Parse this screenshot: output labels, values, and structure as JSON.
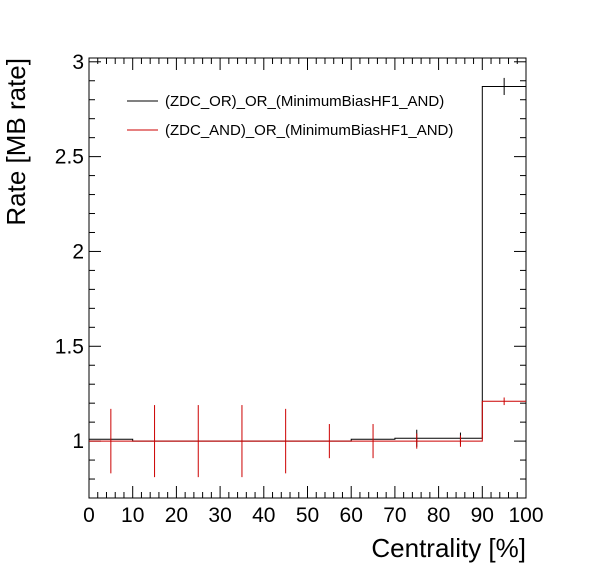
{
  "chart_data": {
    "type": "line",
    "title": "",
    "xlabel": "Centrality [%]",
    "ylabel": "Rate [MB rate]",
    "xlim": [
      0,
      100
    ],
    "ylim": [
      0.7,
      3.02
    ],
    "x_ticks": [
      "0",
      "10",
      "20",
      "30",
      "40",
      "50",
      "60",
      "70",
      "80",
      "90",
      "100"
    ],
    "y_ticks": [
      "1",
      "1.5",
      "2",
      "2.5",
      "3"
    ],
    "legend_position": "top-left",
    "grid": false,
    "bins": [
      [
        0,
        10
      ],
      [
        10,
        20
      ],
      [
        20,
        30
      ],
      [
        30,
        40
      ],
      [
        40,
        50
      ],
      [
        50,
        60
      ],
      [
        60,
        70
      ],
      [
        70,
        80
      ],
      [
        80,
        90
      ],
      [
        90,
        100
      ]
    ],
    "series": [
      {
        "name": "(ZDC_OR)_OR_(MinimumBiasHF1_AND)",
        "color": "#000000",
        "values": [
          1.01,
          1.0,
          1.0,
          1.0,
          1.0,
          1.0,
          1.01,
          1.015,
          1.015,
          2.87
        ],
        "errors": [
          0.0,
          0.0,
          0.0,
          0.0,
          0.0,
          0.0,
          0.0,
          0.045,
          0.03,
          0.045
        ]
      },
      {
        "name": "(ZDC_AND)_OR_(MinimumBiasHF1_AND)",
        "color": "#cc0000",
        "values": [
          1.0,
          1.0,
          1.0,
          1.0,
          1.0,
          1.0,
          1.0,
          1.0,
          1.0,
          1.21
        ],
        "errors": [
          0.17,
          0.19,
          0.19,
          0.19,
          0.17,
          0.09,
          0.09,
          0.04,
          0.03,
          0.02
        ]
      }
    ]
  }
}
